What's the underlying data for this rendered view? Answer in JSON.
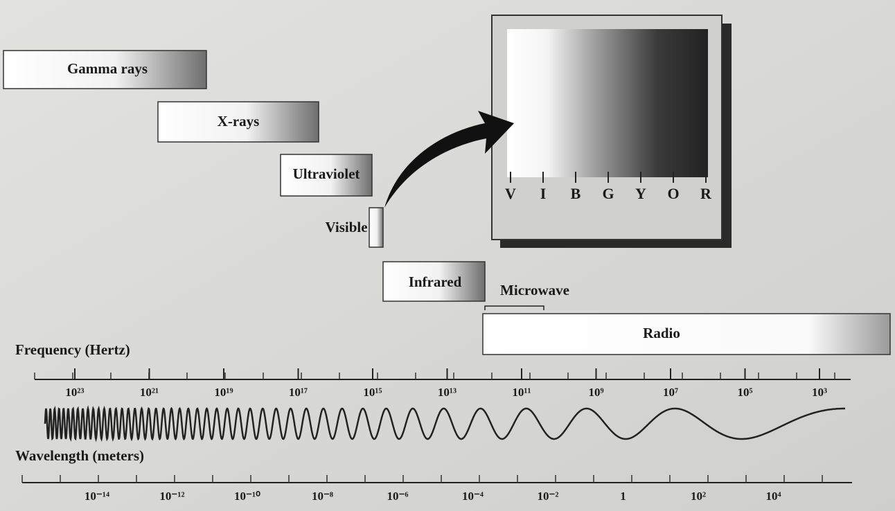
{
  "bands": [
    {
      "label": "Gamma rays"
    },
    {
      "label": "X-rays"
    },
    {
      "label": "Ultraviolet"
    },
    {
      "label": "Visible"
    },
    {
      "label": "Infrared"
    },
    {
      "label": "Microwave"
    },
    {
      "label": "Radio"
    }
  ],
  "visible_panel": {
    "colors": [
      "V",
      "I",
      "B",
      "G",
      "Y",
      "O",
      "R"
    ]
  },
  "frequency_axis": {
    "title": "Frequency (Hertz)",
    "ticks": [
      "10²³",
      "10²¹",
      "10¹⁹",
      "10¹⁷",
      "10¹⁵",
      "10¹³",
      "10¹¹",
      "10⁹",
      "10⁷",
      "10⁵",
      "10³"
    ]
  },
  "wavelength_axis": {
    "title": "Wavelength (meters)",
    "ticks": [
      "10⁻¹⁴",
      "10⁻¹²",
      "10⁻¹⁰",
      "10⁻⁸",
      "10⁻⁶",
      "10⁻⁴",
      "10⁻²",
      "1",
      "10²",
      "10⁴"
    ]
  }
}
